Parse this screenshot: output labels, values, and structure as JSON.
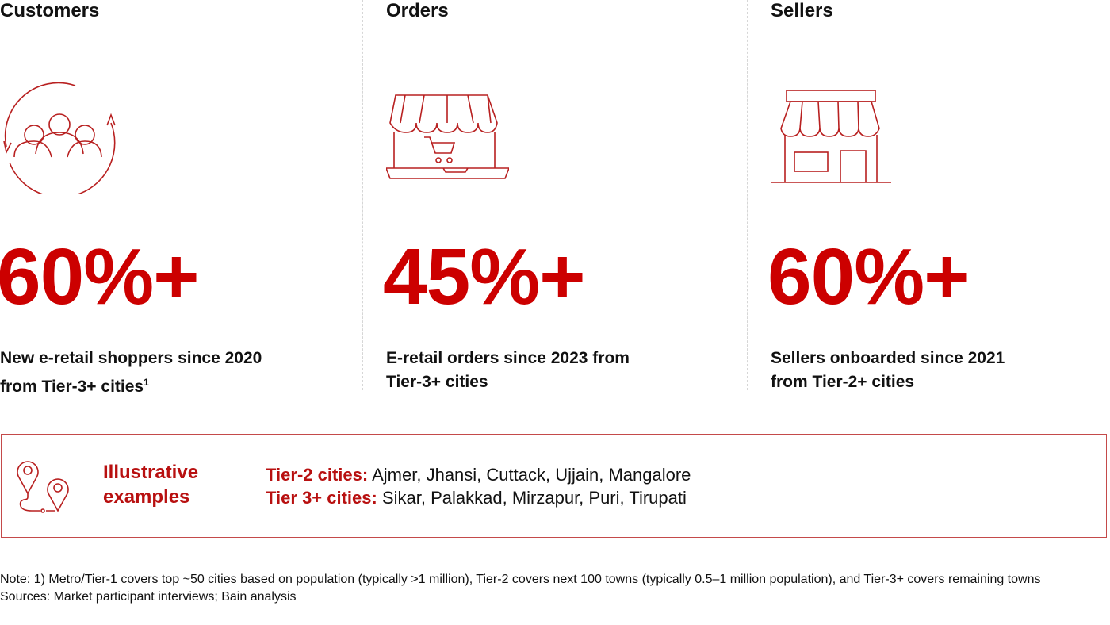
{
  "accent_color": "#cc0000",
  "columns": [
    {
      "title": "Customers",
      "icon": "customers-cycle-icon",
      "value": "60%+",
      "desc_line1": "New e-retail shoppers since 2020",
      "desc_line2": "from Tier-3+ cities",
      "footnote_mark": "1"
    },
    {
      "title": "Orders",
      "icon": "online-store-laptop-icon",
      "value": "45%+",
      "desc_line1": "E-retail orders since 2023 from",
      "desc_line2": "Tier-3+ cities"
    },
    {
      "title": "Sellers",
      "icon": "storefront-icon",
      "value": "60%+",
      "desc_line1": "Sellers onboarded since 2021",
      "desc_line2": "from Tier-2+ cities"
    }
  ],
  "examples": {
    "icon": "map-route-pins-icon",
    "heading_line1": "Illustrative",
    "heading_line2": "examples",
    "tier2_label": "Tier-2 cities:",
    "tier2_list": " Ajmer, Jhansi, Cuttack, Ujjain, Mangalore",
    "tier3_label": "Tier 3+ cities:",
    "tier3_list": " Sikar, Palakkad, Mirzapur, Puri, Tirupati"
  },
  "note": "Note: 1) Metro/Tier-1 covers top ~50 cities based on population (typically >1 million), Tier-2 covers next 100 towns (typically 0.5–1 million population), and Tier-3+ covers remaining towns",
  "sources": "Sources: Market participant interviews; Bain analysis"
}
